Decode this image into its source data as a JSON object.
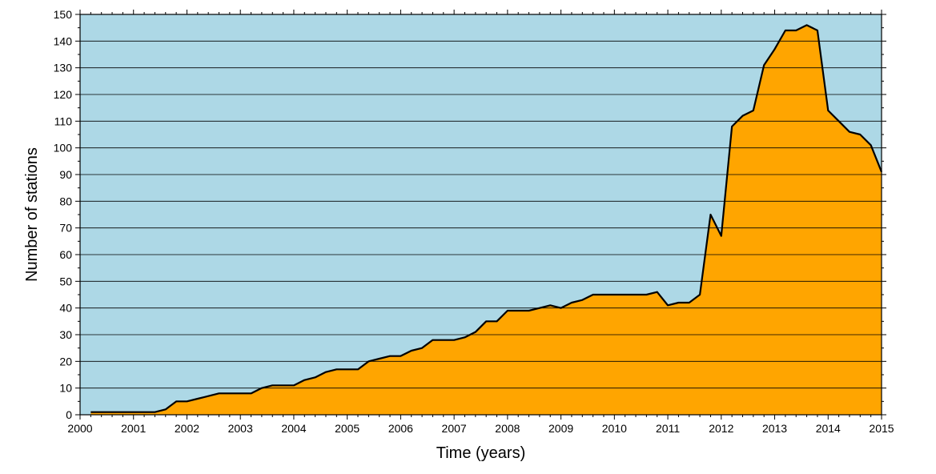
{
  "chart_data": {
    "type": "area",
    "title": "",
    "xlabel": "Time (years)",
    "ylabel": "Number of stations",
    "xlim": [
      2000,
      2015
    ],
    "ylim": [
      0,
      150
    ],
    "x_ticks": [
      "2000",
      "2001",
      "2002",
      "2003",
      "2004",
      "2005",
      "2006",
      "2007",
      "2008",
      "2009",
      "2010",
      "2011",
      "2012",
      "2013",
      "2014",
      "2015"
    ],
    "y_ticks": [
      "0",
      "10",
      "20",
      "30",
      "40",
      "50",
      "60",
      "70",
      "80",
      "90",
      "100",
      "110",
      "120",
      "130",
      "140",
      "150"
    ],
    "grid": "horizontal",
    "colors": {
      "background": "#add8e6",
      "fill": "#ffa500",
      "line": "#000000"
    },
    "series": [
      {
        "x": [
          2000.2,
          2001.4,
          2001.6,
          2001.8,
          2002.0,
          2002.2,
          2002.4,
          2002.6,
          2002.8,
          2003.0,
          2003.2,
          2003.4,
          2003.6,
          2003.8,
          2004.0,
          2004.2,
          2004.4,
          2004.6,
          2004.8,
          2005.0,
          2005.2,
          2005.4,
          2005.6,
          2005.8,
          2006.0,
          2006.2,
          2006.4,
          2006.6,
          2006.8,
          2007.0,
          2007.2,
          2007.4,
          2007.6,
          2007.8,
          2008.0,
          2008.2,
          2008.4,
          2008.6,
          2008.8,
          2009.0,
          2009.2,
          2009.4,
          2009.6,
          2009.8,
          2010.0,
          2010.2,
          2010.4,
          2010.6,
          2010.8,
          2011.0,
          2011.2,
          2011.4,
          2011.6,
          2011.8,
          2012.0,
          2012.2,
          2012.4,
          2012.6,
          2012.8,
          2013.0,
          2013.2,
          2013.4,
          2013.6,
          2013.8,
          2014.0,
          2014.2,
          2014.4,
          2014.6,
          2014.8,
          2015.0
        ],
        "values": [
          1,
          1,
          2,
          5,
          5,
          6,
          7,
          8,
          8,
          8,
          8,
          10,
          11,
          11,
          11,
          13,
          14,
          16,
          17,
          17,
          17,
          20,
          21,
          22,
          22,
          24,
          25,
          28,
          28,
          28,
          29,
          31,
          35,
          35,
          39,
          39,
          39,
          40,
          41,
          40,
          42,
          43,
          45,
          45,
          45,
          45,
          45,
          45,
          46,
          41,
          42,
          42,
          45,
          75,
          67,
          108,
          112,
          114,
          131,
          137,
          144,
          144,
          146,
          144,
          114,
          110,
          106,
          105,
          101,
          91
        ]
      }
    ]
  }
}
